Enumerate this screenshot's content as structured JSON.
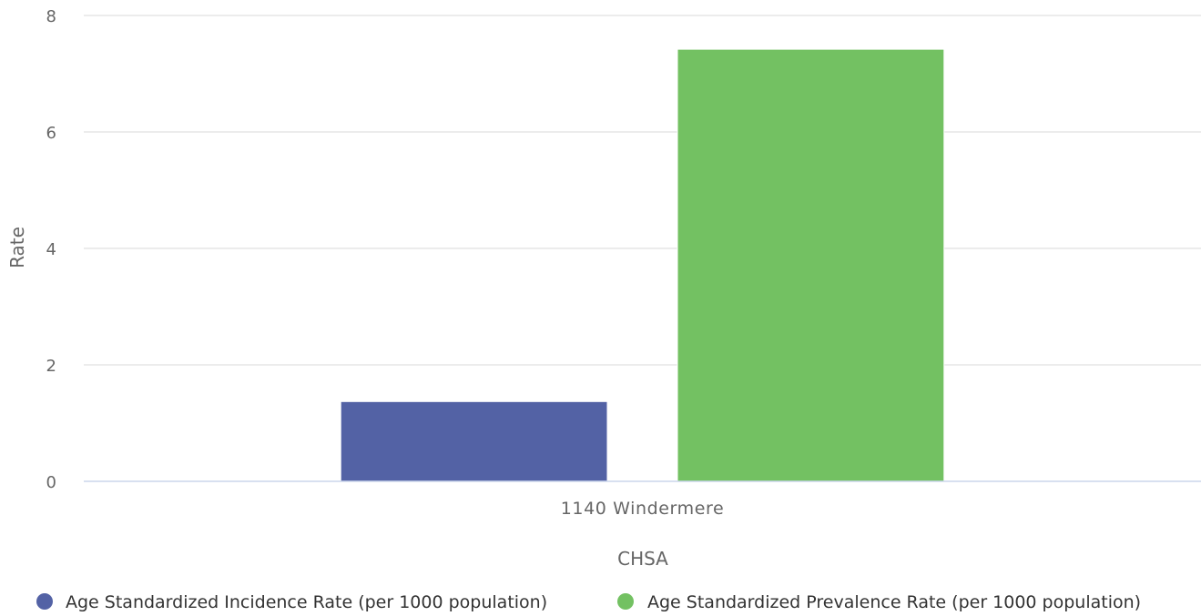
{
  "chart_data": {
    "type": "bar",
    "categories": [
      "1140 Windermere"
    ],
    "series": [
      {
        "name": "Age Standardized Incidence Rate (per 1000 population)",
        "values": [
          1.37
        ],
        "color": "#5362A5"
      },
      {
        "name": "Age Standardized Prevalence Rate (per 1000 population)",
        "values": [
          7.42
        ],
        "color": "#73C162"
      }
    ],
    "xlabel": "CHSA",
    "ylabel": "Rate",
    "ylim": [
      0,
      8
    ],
    "yticks": [
      0,
      2,
      4,
      6,
      8
    ],
    "grid": true,
    "legend_position": "bottom"
  }
}
